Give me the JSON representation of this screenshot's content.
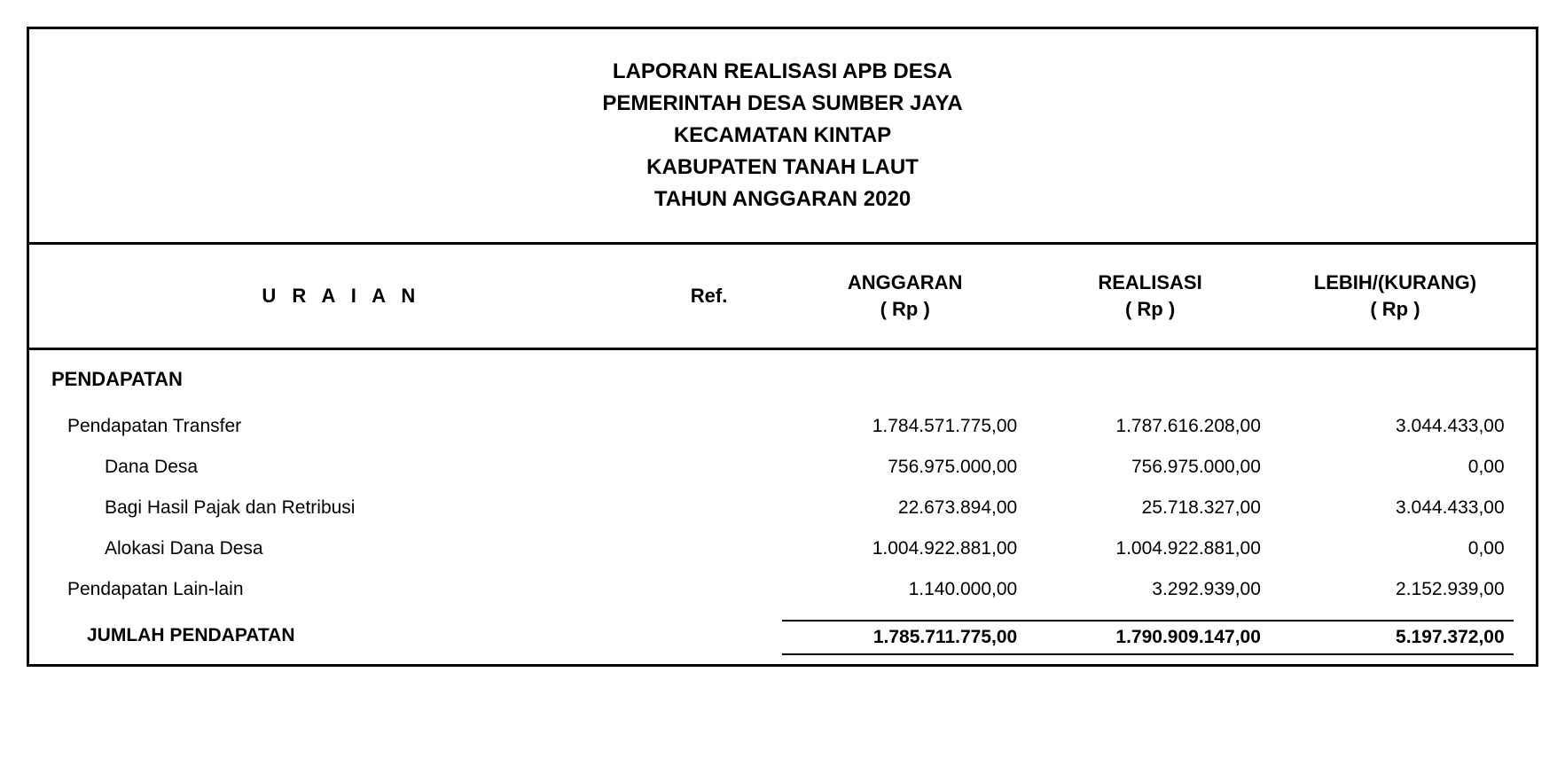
{
  "header": {
    "line1": "LAPORAN REALISASI APB DESA",
    "line2": "PEMERINTAH DESA SUMBER JAYA",
    "line3": "KECAMATAN KINTAP",
    "line4": "KABUPATEN TANAH LAUT",
    "line5": "TAHUN ANGGARAN 2020"
  },
  "columns": {
    "uraian": "U R A I A N",
    "ref": "Ref.",
    "anggaran": "ANGGARAN",
    "anggaran_sub": "( Rp )",
    "realisasi": "REALISASI",
    "realisasi_sub": "( Rp )",
    "lebih": "LEBIH/(KURANG)",
    "lebih_sub": "( Rp )"
  },
  "section_title": "PENDAPATAN",
  "rows": [
    {
      "label": "Pendapatan Transfer",
      "indent": 0,
      "anggaran": "1.784.571.775,00",
      "realisasi": "1.787.616.208,00",
      "lebih": "3.044.433,00"
    },
    {
      "label": "Dana Desa",
      "indent": 1,
      "anggaran": "756.975.000,00",
      "realisasi": "756.975.000,00",
      "lebih": "0,00"
    },
    {
      "label": "Bagi Hasil Pajak dan Retribusi",
      "indent": 1,
      "anggaran": "22.673.894,00",
      "realisasi": "25.718.327,00",
      "lebih": "3.044.433,00"
    },
    {
      "label": "Alokasi Dana Desa",
      "indent": 1,
      "anggaran": "1.004.922.881,00",
      "realisasi": "1.004.922.881,00",
      "lebih": "0,00"
    },
    {
      "label": "Pendapatan Lain-lain",
      "indent": 0,
      "anggaran": "1.140.000,00",
      "realisasi": "3.292.939,00",
      "lebih": "2.152.939,00"
    }
  ],
  "total": {
    "label": "JUMLAH PENDAPATAN",
    "anggaran": "1.785.711.775,00",
    "realisasi": "1.790.909.147,00",
    "lebih": "5.197.372,00"
  },
  "styling": {
    "background_color": "#ffffff",
    "text_color": "#000000",
    "border_color": "#000000",
    "border_width_outer": 3,
    "border_width_inner": 2,
    "font_family": "Arial",
    "header_font_size": 24,
    "body_font_size": 21,
    "column_header_font_size": 22
  }
}
